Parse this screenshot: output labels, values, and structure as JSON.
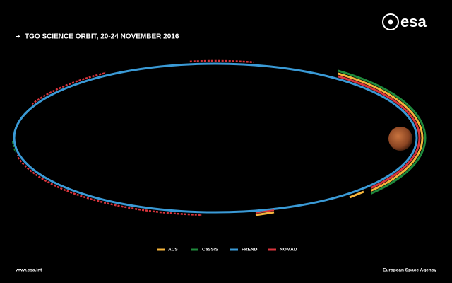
{
  "header": {
    "logo": "esa",
    "title": "TGO SCIENCE ORBIT, 20-24 NOVEMBER 2016"
  },
  "legend": [
    {
      "label": "ACS",
      "color": "#f5b53c"
    },
    {
      "label": "CaSSIS",
      "color": "#1f8a3c"
    },
    {
      "label": "FREND",
      "color": "#3a9ad6"
    },
    {
      "label": "NOMAD",
      "color": "#d8343c"
    }
  ],
  "footer": {
    "url": "www.esa.int",
    "agency": "European Space Agency"
  }
}
